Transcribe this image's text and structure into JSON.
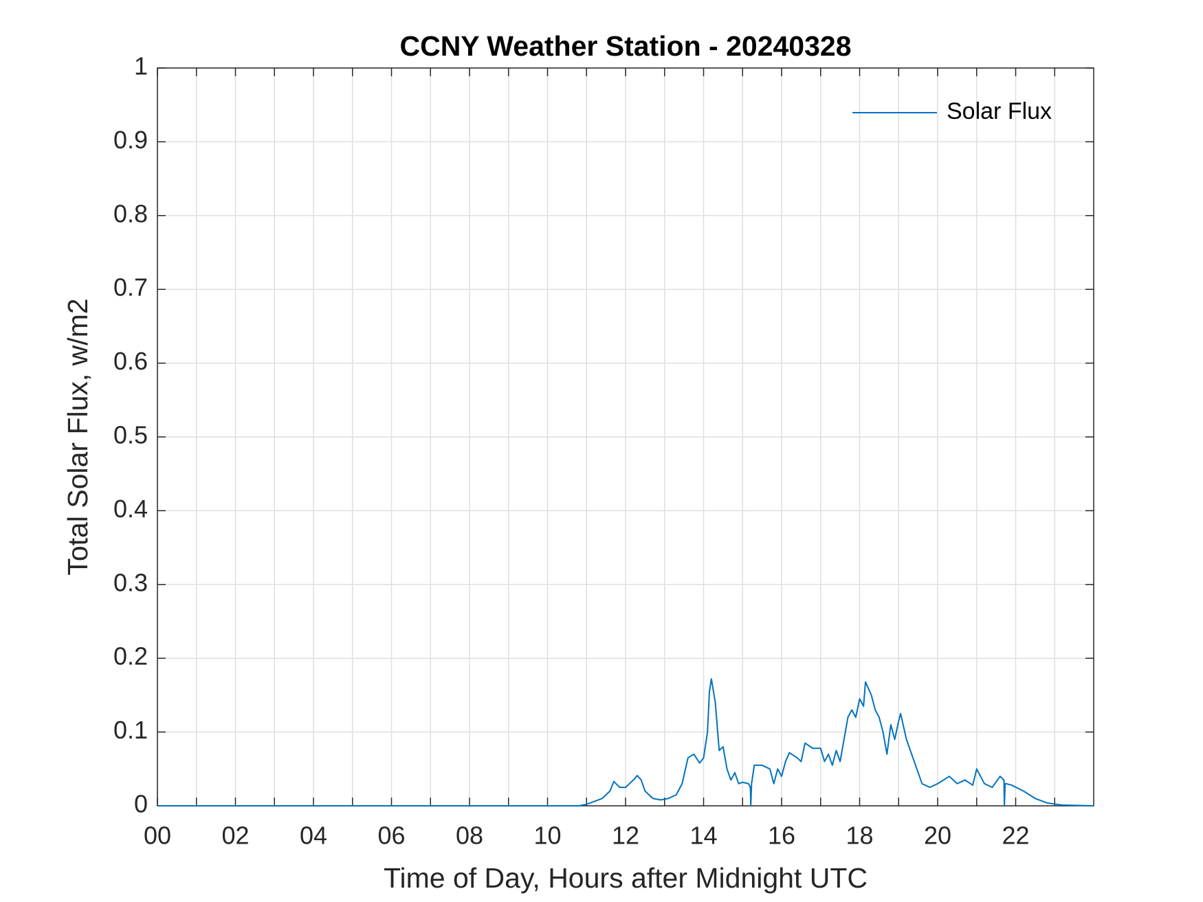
{
  "chart_data": {
    "type": "line",
    "title": "CCNY Weather Station - 20240328",
    "x_label": "Time of Day, Hours after Midnight UTC",
    "y_label": "Total Solar Flux, w/m2",
    "xlim": [
      0,
      24
    ],
    "ylim": [
      0,
      1
    ],
    "xticks": [
      {
        "value": 0,
        "label": "00"
      },
      {
        "value": 2,
        "label": "02"
      },
      {
        "value": 4,
        "label": "04"
      },
      {
        "value": 6,
        "label": "06"
      },
      {
        "value": 8,
        "label": "08"
      },
      {
        "value": 10,
        "label": "10"
      },
      {
        "value": 12,
        "label": "12"
      },
      {
        "value": 14,
        "label": "14"
      },
      {
        "value": 16,
        "label": "16"
      },
      {
        "value": 18,
        "label": "18"
      },
      {
        "value": 20,
        "label": "20"
      },
      {
        "value": 22,
        "label": "22"
      }
    ],
    "xminorticks": [
      1,
      3,
      5,
      7,
      9,
      11,
      13,
      15,
      17,
      19,
      21,
      23
    ],
    "yticks": [
      0,
      0.1,
      0.2,
      0.3,
      0.4,
      0.5,
      0.6,
      0.7,
      0.8,
      0.9,
      1
    ],
    "grid": true,
    "legend": "top-right",
    "series": [
      {
        "name": "Solar Flux",
        "color": "#0072bd",
        "x": [
          0,
          10.8,
          11.0,
          11.4,
          11.6,
          11.7,
          11.85,
          12.0,
          12.2,
          12.3,
          12.4,
          12.5,
          12.7,
          12.9,
          13.1,
          13.3,
          13.45,
          13.6,
          13.75,
          13.9,
          14.0,
          14.1,
          14.15,
          14.2,
          14.3,
          14.4,
          14.5,
          14.6,
          14.7,
          14.8,
          14.9,
          15.0,
          15.15,
          15.2,
          15.21,
          15.23,
          15.3,
          15.5,
          15.7,
          15.8,
          15.9,
          16.0,
          16.1,
          16.2,
          16.4,
          16.5,
          16.6,
          16.8,
          17.0,
          17.1,
          17.2,
          17.3,
          17.4,
          17.5,
          17.6,
          17.7,
          17.8,
          17.9,
          18.0,
          18.1,
          18.15,
          18.3,
          18.4,
          18.5,
          18.6,
          18.7,
          18.8,
          18.9,
          19.0,
          19.05,
          19.2,
          19.4,
          19.6,
          19.8,
          20.0,
          20.3,
          20.5,
          20.7,
          20.9,
          21.0,
          21.2,
          21.4,
          21.6,
          21.7,
          21.71,
          21.73,
          21.75,
          21.9,
          22.2,
          22.5,
          22.8,
          23.2,
          24.0
        ],
        "values": [
          0,
          0,
          0.002,
          0.01,
          0.02,
          0.033,
          0.025,
          0.025,
          0.035,
          0.041,
          0.035,
          0.02,
          0.01,
          0.008,
          0.01,
          0.015,
          0.03,
          0.065,
          0.07,
          0.058,
          0.065,
          0.1,
          0.155,
          0.172,
          0.14,
          0.075,
          0.08,
          0.05,
          0.035,
          0.045,
          0.03,
          0.032,
          0.03,
          0.025,
          0,
          0.03,
          0.055,
          0.055,
          0.05,
          0.03,
          0.05,
          0.04,
          0.06,
          0.072,
          0.065,
          0.06,
          0.085,
          0.078,
          0.078,
          0.06,
          0.07,
          0.055,
          0.075,
          0.06,
          0.09,
          0.12,
          0.13,
          0.12,
          0.145,
          0.135,
          0.168,
          0.15,
          0.13,
          0.12,
          0.1,
          0.07,
          0.11,
          0.09,
          0.115,
          0.125,
          0.09,
          0.06,
          0.03,
          0.025,
          0.03,
          0.04,
          0.03,
          0.035,
          0.028,
          0.05,
          0.03,
          0.025,
          0.04,
          0.035,
          0,
          0.03,
          0.03,
          0.028,
          0.02,
          0.01,
          0.004,
          0.001,
          0
        ]
      }
    ]
  }
}
